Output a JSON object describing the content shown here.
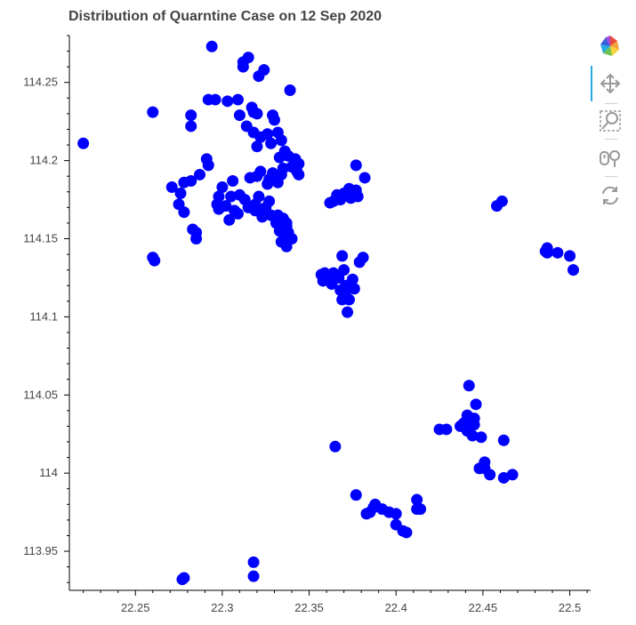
{
  "chart_data": {
    "type": "scatter",
    "title": "Distribution of Quarntine Case on 12 Sep 2020",
    "xlabel": "",
    "ylabel": "",
    "xlim": [
      22.212,
      22.512
    ],
    "ylim": [
      113.925,
      114.28
    ],
    "x_ticks": [
      22.25,
      22.3,
      22.35,
      22.4,
      22.45,
      22.5
    ],
    "x_tick_labels": [
      "22.25",
      "22.3",
      "22.35",
      "22.4",
      "22.45",
      "22.5"
    ],
    "y_ticks": [
      113.95,
      114.0,
      114.05,
      114.1,
      114.15,
      114.2,
      114.25
    ],
    "y_tick_labels": [
      "113.95",
      "114",
      "114.05",
      "114.1",
      "114.15",
      "114.2",
      "114.25"
    ],
    "grid": false,
    "legend": "none",
    "marker_color": "#0000ff",
    "series": [
      {
        "points": [
          [
            22.22,
            114.211
          ],
          [
            22.26,
            114.138
          ],
          [
            22.261,
            114.136
          ],
          [
            22.26,
            114.231
          ],
          [
            22.271,
            114.183
          ],
          [
            22.275,
            114.172
          ],
          [
            22.276,
            114.179
          ],
          [
            22.278,
            114.167
          ],
          [
            22.278,
            114.186
          ],
          [
            22.282,
            114.187
          ],
          [
            22.282,
            114.229
          ],
          [
            22.282,
            114.222
          ],
          [
            22.283,
            114.156
          ],
          [
            22.285,
            114.15
          ],
          [
            22.285,
            114.154
          ],
          [
            22.287,
            114.191
          ],
          [
            22.291,
            114.201
          ],
          [
            22.292,
            114.197
          ],
          [
            22.292,
            114.239
          ],
          [
            22.294,
            114.273
          ],
          [
            22.296,
            114.239
          ],
          [
            22.297,
            114.172
          ],
          [
            22.298,
            114.169
          ],
          [
            22.298,
            114.177
          ],
          [
            22.3,
            114.183
          ],
          [
            22.302,
            114.171
          ],
          [
            22.303,
            114.238
          ],
          [
            22.304,
            114.162
          ],
          [
            22.305,
            114.177
          ],
          [
            22.306,
            114.187
          ],
          [
            22.307,
            114.168
          ],
          [
            22.309,
            114.166
          ],
          [
            22.309,
            114.239
          ],
          [
            22.31,
            114.229
          ],
          [
            22.31,
            114.178
          ],
          [
            22.312,
            114.26
          ],
          [
            22.312,
            114.263
          ],
          [
            22.313,
            114.175
          ],
          [
            22.314,
            114.222
          ],
          [
            22.315,
            114.17
          ],
          [
            22.315,
            114.266
          ],
          [
            22.316,
            114.189
          ],
          [
            22.317,
            114.234
          ],
          [
            22.317,
            114.17
          ],
          [
            22.318,
            114.218
          ],
          [
            22.318,
            114.231
          ],
          [
            22.319,
            114.168
          ],
          [
            22.319,
            114.172
          ],
          [
            22.32,
            114.19
          ],
          [
            22.32,
            114.209
          ],
          [
            22.32,
            114.23
          ],
          [
            22.321,
            114.254
          ],
          [
            22.321,
            114.177
          ],
          [
            22.322,
            114.215
          ],
          [
            22.322,
            114.193
          ],
          [
            22.323,
            114.164
          ],
          [
            22.324,
            114.258
          ],
          [
            22.324,
            114.167
          ],
          [
            22.325,
            114.17
          ],
          [
            22.326,
            114.217
          ],
          [
            22.326,
            114.185
          ],
          [
            22.327,
            114.174
          ],
          [
            22.327,
            114.188
          ],
          [
            22.328,
            114.211
          ],
          [
            22.328,
            114.165
          ],
          [
            22.329,
            114.229
          ],
          [
            22.329,
            114.192
          ],
          [
            22.33,
            114.226
          ],
          [
            22.33,
            114.189
          ],
          [
            22.331,
            114.16
          ],
          [
            22.332,
            114.218
          ],
          [
            22.332,
            114.186
          ],
          [
            22.332,
            114.165
          ],
          [
            22.333,
            114.155
          ],
          [
            22.333,
            114.202
          ],
          [
            22.334,
            114.213
          ],
          [
            22.334,
            114.148
          ],
          [
            22.334,
            114.191
          ],
          [
            22.335,
            114.163
          ],
          [
            22.335,
            114.195
          ],
          [
            22.336,
            114.152
          ],
          [
            22.336,
            114.206
          ],
          [
            22.337,
            114.158
          ],
          [
            22.337,
            114.145
          ],
          [
            22.337,
            114.16
          ],
          [
            22.338,
            114.154
          ],
          [
            22.338,
            114.203
          ],
          [
            22.339,
            114.245
          ],
          [
            22.34,
            114.15
          ],
          [
            22.34,
            114.196
          ],
          [
            22.342,
            114.201
          ],
          [
            22.343,
            114.193
          ],
          [
            22.344,
            114.191
          ],
          [
            22.344,
            114.198
          ],
          [
            22.357,
            114.127
          ],
          [
            22.358,
            114.123
          ],
          [
            22.359,
            114.128
          ],
          [
            22.361,
            114.124
          ],
          [
            22.362,
            114.173
          ],
          [
            22.363,
            114.121
          ],
          [
            22.364,
            114.174
          ],
          [
            22.364,
            114.128
          ],
          [
            22.366,
            114.178
          ],
          [
            22.367,
            114.125
          ],
          [
            22.368,
            114.175
          ],
          [
            22.368,
            114.117
          ],
          [
            22.369,
            114.139
          ],
          [
            22.369,
            114.111
          ],
          [
            22.37,
            114.179
          ],
          [
            22.37,
            114.13
          ],
          [
            22.371,
            114.12
          ],
          [
            22.371,
            114.116
          ],
          [
            22.372,
            114.103
          ],
          [
            22.373,
            114.111
          ],
          [
            22.373,
            114.182
          ],
          [
            22.374,
            114.176
          ],
          [
            22.375,
            114.124
          ],
          [
            22.376,
            114.118
          ],
          [
            22.377,
            114.181
          ],
          [
            22.377,
            114.197
          ],
          [
            22.378,
            114.177
          ],
          [
            22.379,
            114.135
          ],
          [
            22.381,
            114.138
          ],
          [
            22.382,
            114.189
          ],
          [
            22.365,
            114.017
          ],
          [
            22.377,
            113.986
          ],
          [
            22.383,
            113.974
          ],
          [
            22.385,
            113.975
          ],
          [
            22.387,
            113.978
          ],
          [
            22.388,
            113.98
          ],
          [
            22.392,
            113.977
          ],
          [
            22.396,
            113.975
          ],
          [
            22.4,
            113.974
          ],
          [
            22.4,
            113.967
          ],
          [
            22.404,
            113.963
          ],
          [
            22.406,
            113.962
          ],
          [
            22.412,
            113.983
          ],
          [
            22.412,
            113.977
          ],
          [
            22.414,
            113.977
          ],
          [
            22.425,
            114.028
          ],
          [
            22.429,
            114.028
          ],
          [
            22.437,
            114.03
          ],
          [
            22.439,
            114.032
          ],
          [
            22.441,
            114.027
          ],
          [
            22.441,
            114.037
          ],
          [
            22.442,
            114.056
          ],
          [
            22.443,
            114.031
          ],
          [
            22.444,
            114.024
          ],
          [
            22.445,
            114.031
          ],
          [
            22.445,
            114.035
          ],
          [
            22.446,
            114.044
          ],
          [
            22.448,
            114.003
          ],
          [
            22.449,
            114.023
          ],
          [
            22.451,
            114.007
          ],
          [
            22.451,
            114.003
          ],
          [
            22.454,
            113.999
          ],
          [
            22.458,
            114.171
          ],
          [
            22.461,
            114.174
          ],
          [
            22.462,
            113.997
          ],
          [
            22.462,
            114.021
          ],
          [
            22.467,
            113.999
          ],
          [
            22.486,
            114.142
          ],
          [
            22.487,
            114.141
          ],
          [
            22.487,
            114.144
          ],
          [
            22.493,
            114.141
          ],
          [
            22.5,
            114.139
          ],
          [
            22.502,
            114.13
          ],
          [
            22.277,
            113.932
          ],
          [
            22.278,
            113.933
          ],
          [
            22.318,
            113.943
          ],
          [
            22.318,
            113.934
          ]
        ]
      }
    ]
  },
  "toolbar": {
    "items": [
      {
        "name": "bokeh-logo-icon"
      },
      {
        "name": "pan-tool-icon"
      },
      {
        "name": "box-zoom-tool-icon"
      },
      {
        "name": "wheel-zoom-tool-icon"
      },
      {
        "name": "reset-tool-icon"
      }
    ]
  }
}
